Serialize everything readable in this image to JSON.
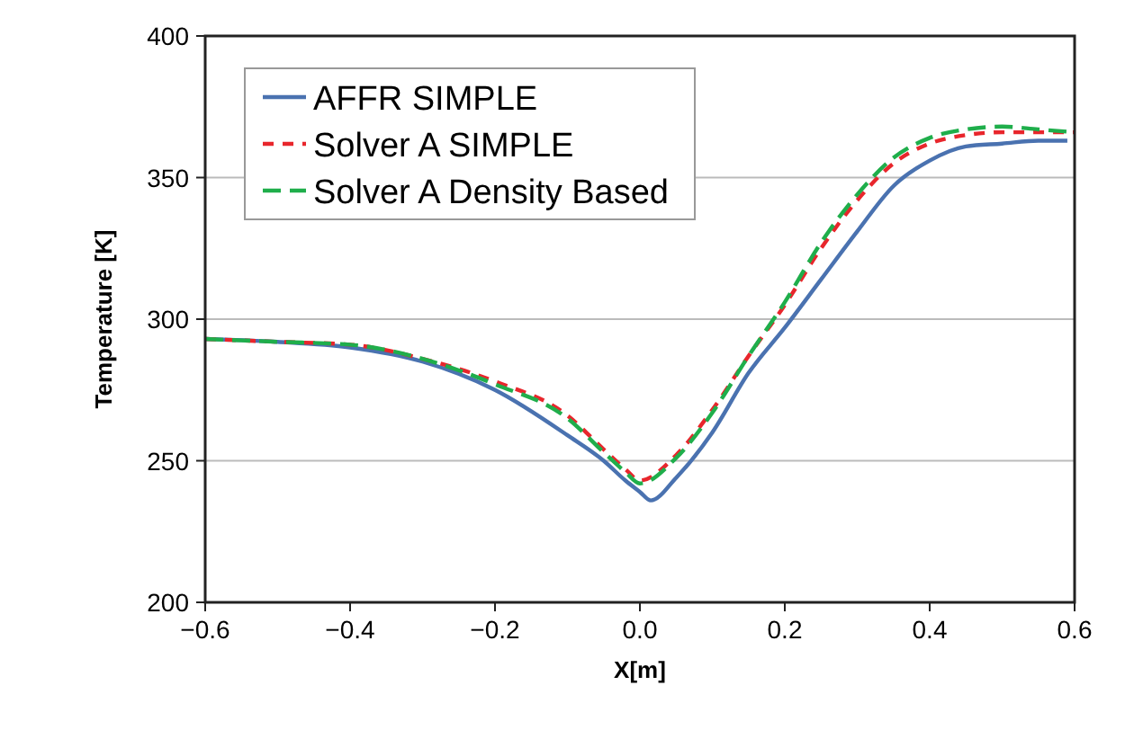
{
  "chart_data": {
    "type": "line",
    "xlabel": "X[m]",
    "ylabel": "Temperature [K]",
    "xlim": [
      -0.6,
      0.6
    ],
    "xticks": [
      {
        "value": -0.6,
        "label": "−0.6"
      },
      {
        "value": -0.4,
        "label": "−0.4"
      },
      {
        "value": -0.2,
        "label": "−0.2"
      },
      {
        "value": 0,
        "label": "0.0"
      },
      {
        "value": 0.2,
        "label": "0.2"
      },
      {
        "value": 0.4,
        "label": "0.4"
      },
      {
        "value": 0.6,
        "label": "0.6"
      }
    ],
    "ylim": [
      200,
      400
    ],
    "yticks": [
      200,
      250,
      300,
      350,
      400
    ],
    "grid": "y",
    "legend": "top left",
    "series": [
      {
        "name": "AFFR SIMPLE",
        "color": "#4a72b0",
        "line_style": "solid",
        "x": [
          -0.6,
          -0.5,
          -0.4,
          -0.3,
          -0.2,
          -0.1,
          -0.05,
          -0.02,
          0,
          0.015,
          0.05,
          0.1,
          0.15,
          0.2,
          0.25,
          0.3,
          0.35,
          0.4,
          0.45,
          0.5,
          0.55,
          0.59
        ],
        "values": [
          293,
          292,
          290,
          285,
          275,
          259,
          250,
          243,
          239,
          236,
          244,
          260,
          281,
          297,
          314,
          331,
          347,
          356,
          361,
          362,
          363,
          363
        ]
      },
      {
        "name": "Solver A SIMPLE",
        "color": "#e8262c",
        "line_style": "dashed",
        "x": [
          -0.6,
          -0.5,
          -0.4,
          -0.3,
          -0.2,
          -0.1,
          -0.05,
          -0.02,
          0,
          0.05,
          0.1,
          0.15,
          0.2,
          0.25,
          0.3,
          0.35,
          0.4,
          0.45,
          0.5,
          0.55,
          0.6
        ],
        "values": [
          293,
          292,
          291,
          286,
          278,
          266,
          254,
          247,
          243,
          252,
          268,
          287,
          305,
          325,
          342,
          355,
          362,
          365,
          366,
          366,
          366
        ]
      },
      {
        "name": "Solver A Density Based",
        "color": "#1fae4b",
        "line_style": "dashed",
        "x": [
          -0.6,
          -0.5,
          -0.4,
          -0.3,
          -0.2,
          -0.1,
          -0.05,
          -0.02,
          0,
          0.05,
          0.1,
          0.15,
          0.2,
          0.25,
          0.3,
          0.35,
          0.4,
          0.45,
          0.5,
          0.55,
          0.6
        ],
        "values": [
          293,
          292,
          291,
          286,
          277,
          265,
          253,
          246,
          242,
          251,
          267,
          287,
          306,
          327,
          344,
          357,
          364,
          367,
          368,
          367,
          366
        ]
      }
    ]
  }
}
